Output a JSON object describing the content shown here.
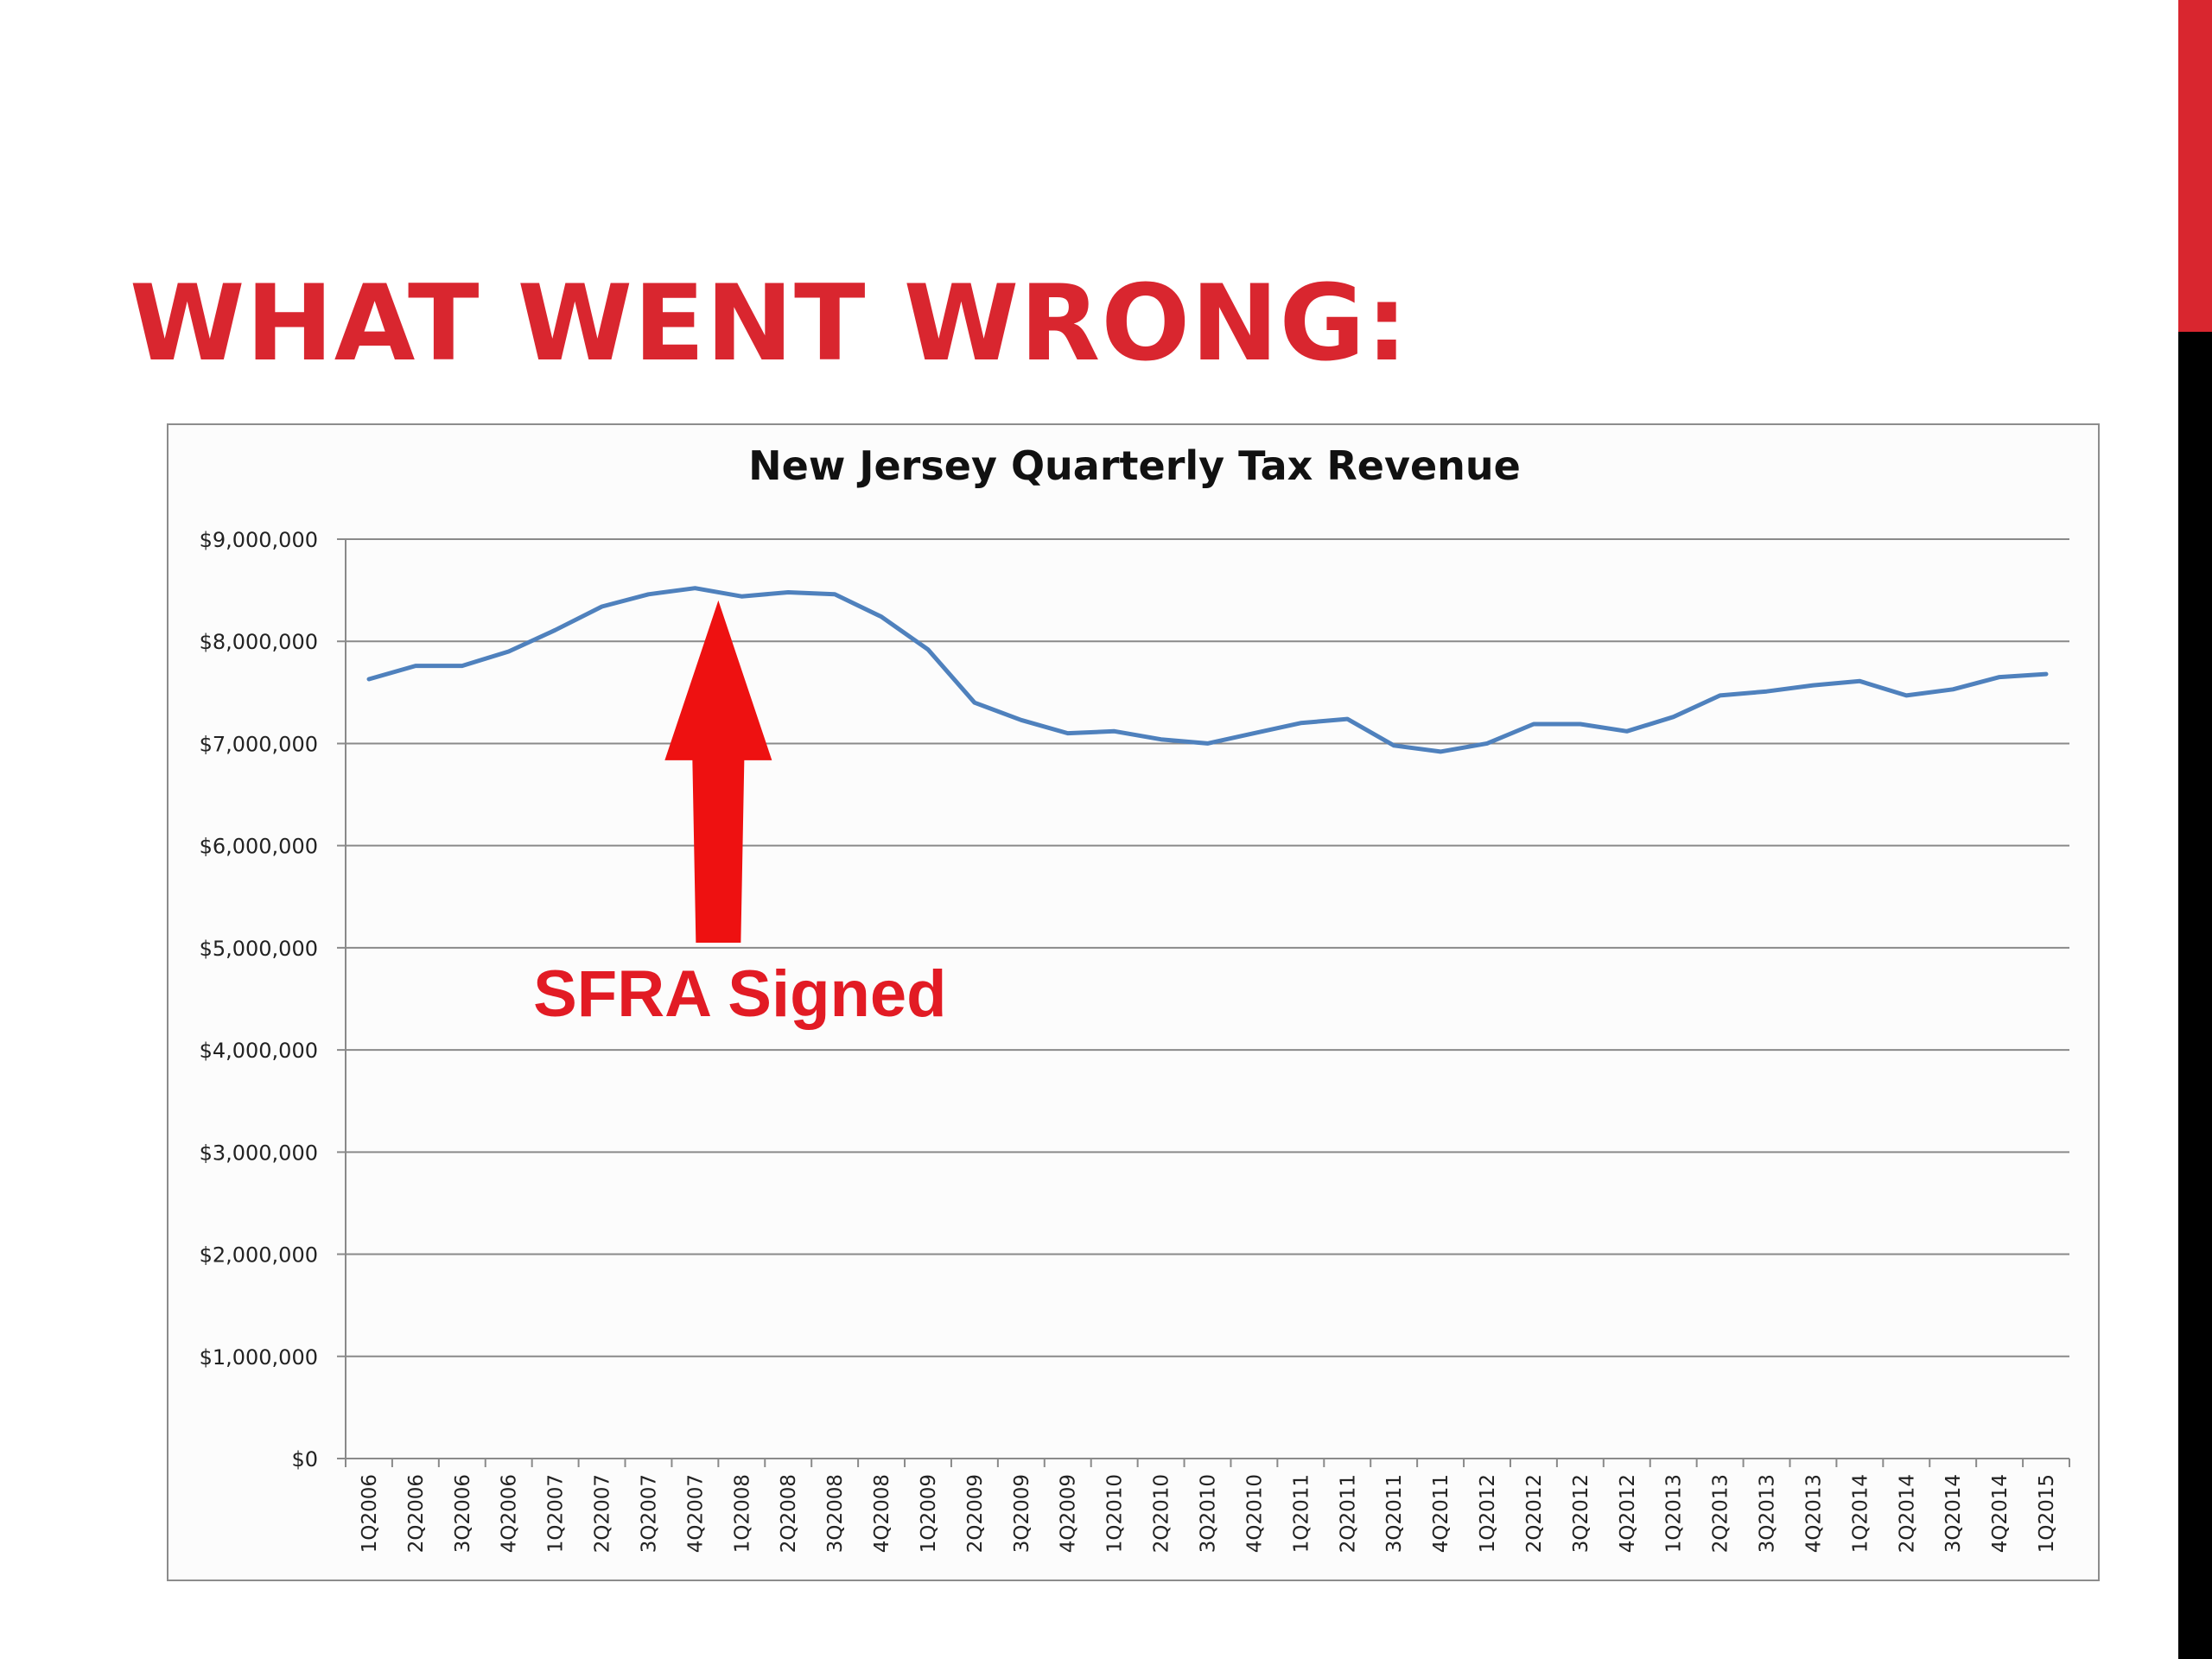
{
  "slide": {
    "title": "WHAT WENT WRONG:"
  },
  "colors": {
    "brand_red": "#d9262f",
    "accent_black": "#000000",
    "series_line": "#4f81bd",
    "annotation_red": "#ee1111"
  },
  "chart_data": {
    "type": "line",
    "title": "New Jersey Quarterly Tax Revenue",
    "xlabel": "",
    "ylabel": "",
    "ylim": [
      0,
      9000000
    ],
    "yticks": [
      0,
      1000000,
      2000000,
      3000000,
      4000000,
      5000000,
      6000000,
      7000000,
      8000000,
      9000000
    ],
    "ytick_labels": [
      "$0",
      "$1,000,000",
      "$2,000,000",
      "$3,000,000",
      "$4,000,000",
      "$5,000,000",
      "$6,000,000",
      "$7,000,000",
      "$8,000,000",
      "$9,000,000"
    ],
    "grid": true,
    "legend": "none",
    "categories": [
      "1Q2006",
      "2Q2006",
      "3Q2006",
      "4Q2006",
      "1Q2007",
      "2Q2007",
      "3Q2007",
      "4Q2007",
      "1Q2008",
      "2Q2008",
      "3Q2008",
      "4Q2008",
      "1Q2009",
      "2Q2009",
      "3Q2009",
      "4Q2009",
      "1Q2010",
      "2Q2010",
      "3Q2010",
      "4Q2010",
      "1Q2011",
      "2Q2011",
      "3Q2011",
      "4Q2011",
      "1Q2012",
      "2Q2012",
      "3Q2012",
      "4Q2012",
      "1Q2013",
      "2Q2013",
      "3Q2013",
      "4Q2013",
      "1Q2014",
      "2Q2014",
      "3Q2014",
      "4Q2014",
      "1Q2015"
    ],
    "values": [
      7630000,
      7760000,
      7760000,
      7900000,
      8110000,
      8340000,
      8460000,
      8520000,
      8440000,
      8480000,
      8460000,
      8240000,
      7920000,
      7400000,
      7230000,
      7100000,
      7120000,
      7040000,
      7000000,
      7100000,
      7200000,
      7240000,
      6980000,
      6920000,
      7000000,
      7190000,
      7190000,
      7120000,
      7260000,
      7470000,
      7510000,
      7570000,
      7610000,
      7470000,
      7530000,
      7650000,
      7680000
    ],
    "annotations": [
      {
        "text": "SFRA Signed",
        "arrow_points_to": "1Q2008",
        "arrow_tip_y": 8400000,
        "arrow_base_y": 5050000,
        "label_y": 4550000
      }
    ]
  }
}
